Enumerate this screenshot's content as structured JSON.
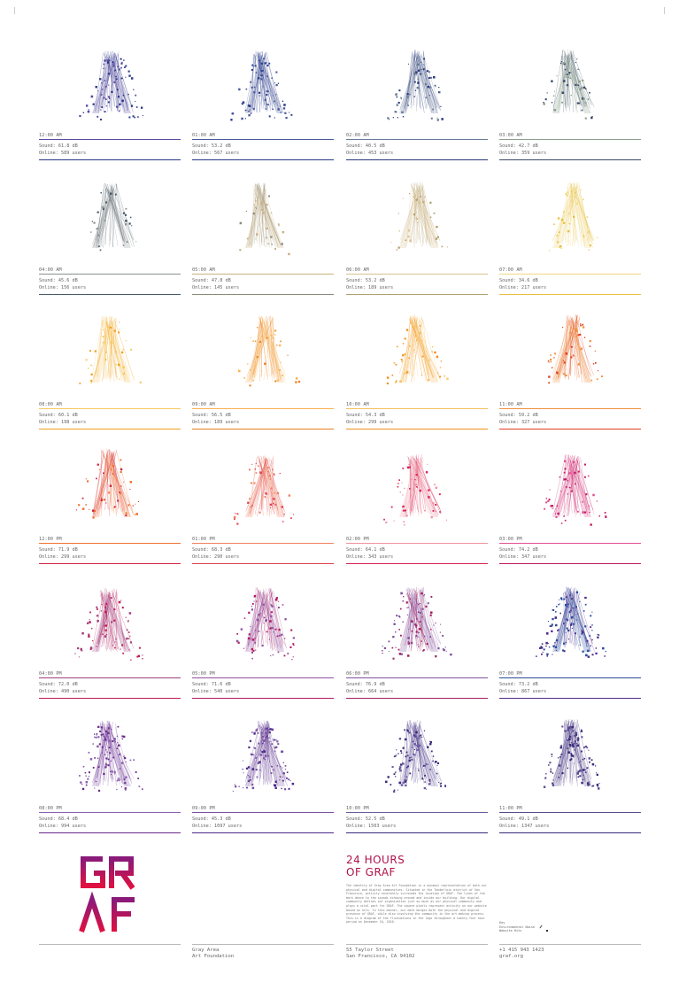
{
  "cells": [
    {
      "time": "12:00 AM",
      "sound": "Sound: 61.8 dB",
      "online": "Online: 589 users",
      "c1": "#2a3a8a",
      "c2": "#5a4aa0"
    },
    {
      "time": "01:00 AM",
      "sound": "Sound: 53.2 dB",
      "online": "Online: 567 users",
      "c1": "#2a3a8a",
      "c2": "#4a5a9a"
    },
    {
      "time": "02:00 AM",
      "sound": "Sound: 40.5 dB",
      "online": "Online: 453 users",
      "c1": "#2a3a7a",
      "c2": "#6a7a9a"
    },
    {
      "time": "03:00 AM",
      "sound": "Sound: 42.7 dB",
      "online": "Online: 359 users",
      "c1": "#3a4a6a",
      "c2": "#8aa08a"
    },
    {
      "time": "04:00 AM",
      "sound": "Sound: 45.6 dB",
      "online": "Online: 156 users",
      "c1": "#4a5a6a",
      "c2": "#8a9090"
    },
    {
      "time": "05:00 AM",
      "sound": "Sound: 47.8 dB",
      "online": "Online: 145 users",
      "c1": "#8a8a7a",
      "c2": "#c8b080"
    },
    {
      "time": "06:00 AM",
      "sound": "Sound: 53.2 dB",
      "online": "Online: 189 users",
      "c1": "#b0a070",
      "c2": "#d8c090"
    },
    {
      "time": "07:00 AM",
      "sound": "Sound: 34.6 dB",
      "online": "Online: 217 users",
      "c1": "#e8c040",
      "c2": "#f0d880"
    },
    {
      "time": "08:00 AM",
      "sound": "Sound: 60.1 dB",
      "online": "Online: 198 users",
      "c1": "#f0a020",
      "c2": "#f8c860"
    },
    {
      "time": "09:00 AM",
      "sound": "Sound: 56.5 dB",
      "online": "Online: 189 users",
      "c1": "#e88020",
      "c2": "#f8b050"
    },
    {
      "time": "10:00 AM",
      "sound": "Sound: 54.3 dB",
      "online": "Online: 299 users",
      "c1": "#f09020",
      "c2": "#f8c060"
    },
    {
      "time": "11:00 AM",
      "sound": "Sound: 59.2 dB",
      "online": "Online: 327 users",
      "c1": "#e04020",
      "c2": "#f09040"
    },
    {
      "time": "12:00 PM",
      "sound": "Sound: 71.9 dB",
      "online": "Online: 299 users",
      "c1": "#d02040",
      "c2": "#f07030"
    },
    {
      "time": "01:00 PM",
      "sound": "Sound: 68.3 dB",
      "online": "Online: 290 users",
      "c1": "#e04050",
      "c2": "#f08060"
    },
    {
      "time": "02:00 PM",
      "sound": "Sound: 64.1 dB",
      "online": "Online: 343 users",
      "c1": "#d82050",
      "c2": "#f090a0"
    },
    {
      "time": "03:00 PM",
      "sound": "Sound: 74.2 dB",
      "online": "Online: 347 users",
      "c1": "#c01860",
      "c2": "#e05090"
    },
    {
      "time": "04:00 PM",
      "sound": "Sound: 72.0 dB",
      "online": "Online: 490 users",
      "c1": "#c01850",
      "c2": "#a04080"
    },
    {
      "time": "05:00 PM",
      "sound": "Sound: 71.6 dB",
      "online": "Online: 540 users",
      "c1": "#b01860",
      "c2": "#9050a0"
    },
    {
      "time": "06:00 PM",
      "sound": "Sound: 76.9 dB",
      "online": "Online: 664 users",
      "c1": "#a02060",
      "c2": "#8050a0"
    },
    {
      "time": "07:00 PM",
      "sound": "Sound: 73.2 dB",
      "online": "Online: 867 users",
      "c1": "#502a8a",
      "c2": "#2a4a9a"
    },
    {
      "time": "08:00 PM",
      "sound": "Sound: 68.4 dB",
      "online": "Online: 994 users",
      "c1": "#6a2a8a",
      "c2": "#8a60b0"
    },
    {
      "time": "09:00 PM",
      "sound": "Sound: 45.3 dB",
      "online": "Online: 1097 users",
      "c1": "#4a2a8a",
      "c2": "#7a50a0"
    },
    {
      "time": "10:00 PM",
      "sound": "Sound: 52.5 dB",
      "online": "Online: 1503 users",
      "c1": "#3a2a7a",
      "c2": "#6a5aa0"
    },
    {
      "time": "11:00 PM",
      "sound": "Sound: 49.1 dB",
      "online": "Online: 1347 users",
      "c1": "#3a2a7a",
      "c2": "#5a4a90"
    }
  ],
  "logo": {
    "line1": "GR",
    "line2": "ΛF",
    "color_top": "#8a1a7a",
    "color_bottom": "#e01040"
  },
  "footer": {
    "org_line1": "Gray Area",
    "org_line2": "Art Foundation",
    "addr_line1": "55 Taylor Street",
    "addr_line2": "San Francisco, CA 94102",
    "phone": "+1 415 943 1423",
    "site": "graf.org",
    "title_line1": "24 HOURS",
    "title_line2": "OF GRAF",
    "description": "The identity of Gray Area Art Foundation is a dynamic representation of both our physical and digital communities. Situated in the Tenderloin district of San Francisco, activity constantly surrounds the location of GRAF. The lines of the mark dance to the sounds echoing around and inside our building. Our digital community defines our organization just as much as our physical community and plays a vital part for GRAF. The square pixels represent activity on our website based on hits. In this manner, our mark merges both the physical and digital presence of GRAF, while also involving the community in the art-making process. This is a diagram of the fluctuations in the logo throughout a twenty-four hour period on December 16, 2010.",
    "key_title": "Key",
    "key_item1": "Environmental Noise",
    "key_item2": "Website Hits"
  }
}
